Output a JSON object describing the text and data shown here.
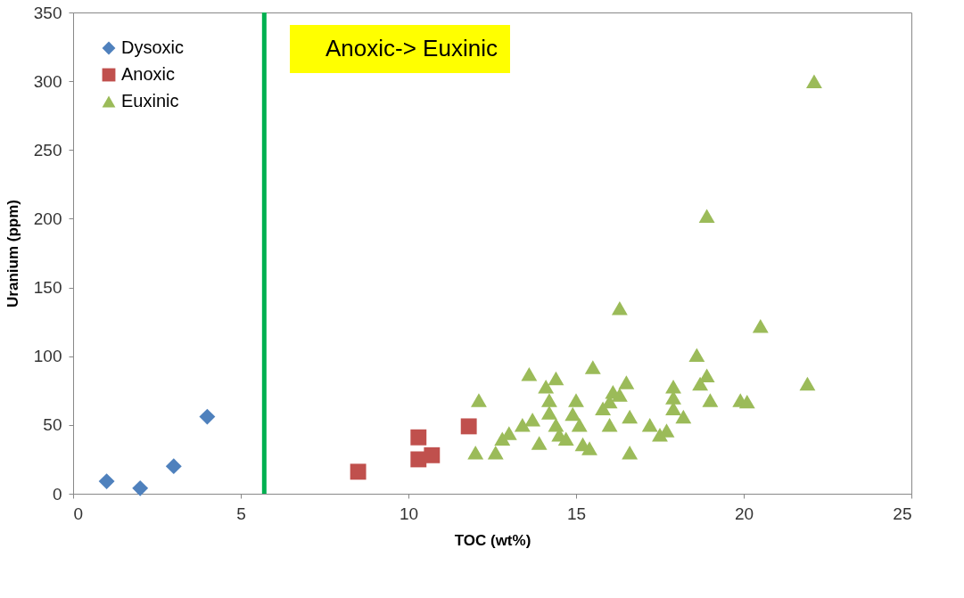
{
  "chart_data": {
    "type": "scatter",
    "xlabel": "TOC (wt%)",
    "ylabel": "Uranium (ppm)",
    "xlim": [
      0,
      25
    ],
    "xticks": [
      0,
      5,
      10,
      15,
      20,
      25
    ],
    "ylim": [
      0,
      350
    ],
    "yticks": [
      0,
      50,
      100,
      150,
      200,
      250,
      300,
      350
    ],
    "grid": false,
    "legend": "top left",
    "series": [
      {
        "name": "Dysoxic",
        "color": "#4f81bd",
        "marker": "diamond",
        "x": [
          1,
          2,
          3,
          4
        ],
        "values": [
          9,
          4,
          20,
          56
        ]
      },
      {
        "name": "Anoxic",
        "color": "#c0504d",
        "marker": "square",
        "x": [
          8.5,
          10.3,
          10.3,
          10.7,
          11.8
        ],
        "values": [
          16,
          41,
          25,
          28,
          49
        ]
      },
      {
        "name": "Euxinic",
        "color": "#9bbb59",
        "marker": "triangle",
        "x": [
          22.1,
          18.9,
          16.3,
          20.5,
          18.6,
          18.9,
          18.7,
          21.9,
          19.9,
          20.1,
          19.0,
          17.9,
          17.9,
          12.0,
          12.1,
          12.6,
          12.8,
          13.0,
          13.7,
          13.4,
          13.6,
          13.9,
          14.2,
          14.1,
          14.4,
          14.2,
          14.4,
          14.5,
          14.7,
          15.0,
          14.9,
          15.1,
          15.2,
          15.4,
          15.8,
          16.0,
          15.5,
          16.3,
          16.6,
          16.6,
          16.0,
          16.1,
          16.5,
          17.2,
          17.5,
          17.7,
          17.9,
          18.2
        ],
        "values": [
          300,
          202,
          135,
          122,
          101,
          86,
          80,
          80,
          68,
          67,
          68,
          78,
          70,
          30,
          68,
          30,
          40,
          44,
          54,
          50,
          87,
          37,
          68,
          78,
          84,
          59,
          50,
          43,
          40,
          68,
          58,
          50,
          36,
          33,
          62,
          67,
          92,
          72,
          56,
          30,
          50,
          74,
          81,
          50,
          43,
          46,
          62,
          56
        ]
      }
    ],
    "ref_lines": [
      {
        "axis": "x",
        "value": 5.7,
        "color": "#00b050"
      }
    ],
    "annotations": [
      "Anoxic-> Euxinic"
    ]
  }
}
